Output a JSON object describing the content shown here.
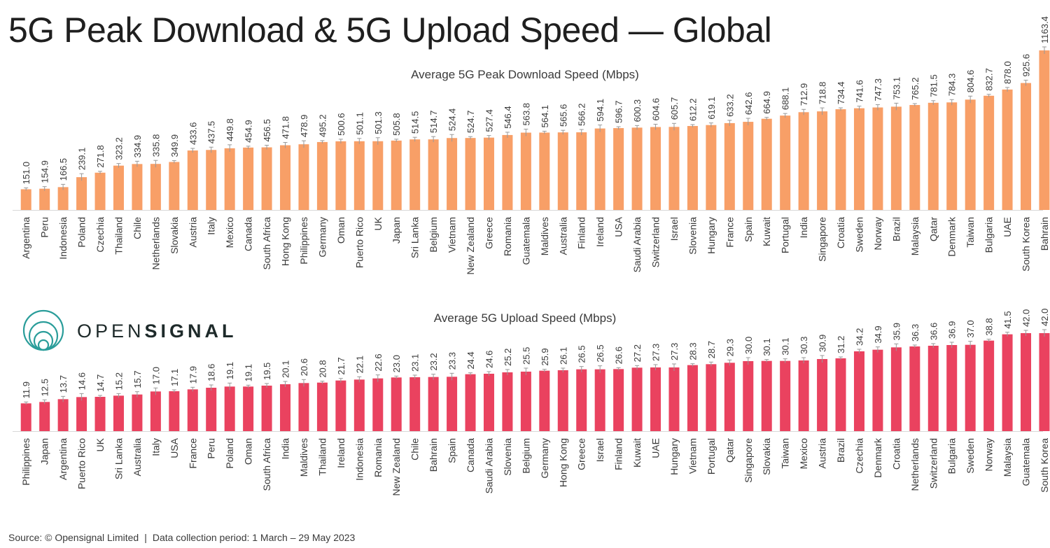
{
  "title": "5G Peak Download & 5G Upload Speed — Global",
  "logo": {
    "name_light": "OPEN",
    "name_bold": "SIGNAL"
  },
  "footer": {
    "source": "Source:  © Opensignal Limited",
    "separator": "|",
    "period": "Data collection period: 1 March – 29 May 2023"
  },
  "colors": {
    "download": "#f89f67",
    "upload": "#ea425f",
    "error_bar": "#999999",
    "text": "#3a3a3a"
  },
  "chart_data": [
    {
      "type": "bar",
      "title": "Average 5G Peak Download Speed (Mbps)",
      "xlabel": "",
      "ylabel": "",
      "ylim": [
        0,
        1163.4
      ],
      "grid": false,
      "categories": [
        "Argentina",
        "Peru",
        "Indonesia",
        "Poland",
        "Czechia",
        "Thailand",
        "Chile",
        "Netherlands",
        "Slovakia",
        "Austria",
        "Italy",
        "Mexico",
        "Canada",
        "South Africa",
        "Hong Kong",
        "Philippines",
        "Germany",
        "Oman",
        "Puerto Rico",
        "UK",
        "Japan",
        "Sri Lanka",
        "Belgium",
        "Vietnam",
        "New Zealand",
        "Greece",
        "Romania",
        "Guatemala",
        "Maldives",
        "Australia",
        "Finland",
        "Ireland",
        "USA",
        "Saudi Arabia",
        "Switzerland",
        "Israel",
        "Slovenia",
        "Hungary",
        "France",
        "Spain",
        "Kuwait",
        "Portugal",
        "India",
        "Singapore",
        "Croatia",
        "Sweden",
        "Norway",
        "Brazil",
        "Malaysia",
        "Qatar",
        "Denmark",
        "Taiwan",
        "Bulgaria",
        "UAE",
        "South Korea",
        "Bahrain"
      ],
      "values": [
        151.0,
        154.9,
        166.5,
        239.1,
        271.8,
        323.2,
        334.9,
        335.8,
        349.9,
        433.6,
        437.5,
        449.8,
        454.9,
        456.5,
        471.8,
        478.9,
        495.2,
        500.6,
        501.1,
        501.3,
        505.8,
        514.5,
        514.7,
        524.4,
        524.7,
        527.4,
        546.4,
        563.8,
        564.1,
        565.6,
        566.2,
        594.1,
        596.7,
        600.3,
        604.6,
        605.7,
        612.2,
        619.1,
        633.2,
        642.6,
        664.9,
        688.1,
        712.9,
        718.8,
        734.4,
        741.6,
        747.3,
        753.1,
        765.2,
        781.5,
        784.3,
        804.6,
        832.7,
        878.0,
        925.6,
        1163.4
      ],
      "value_labels": [
        "151.0",
        "154.9",
        "166.5",
        "239.1",
        "271.8",
        "323.2",
        "334.9",
        "335.8",
        "349.9",
        "433.6",
        "437.5",
        "449.8",
        "454.9",
        "456.5",
        "471.8",
        "478.9",
        "495.2",
        "500.6",
        "501.1",
        "501.3",
        "505.8",
        "514.5",
        "514.7",
        "524.4",
        "524.7",
        "527.4",
        "546.4",
        "563.8",
        "564.1",
        "565.6",
        "566.2",
        "594.1",
        "596.7",
        "600.3",
        "604.6",
        "605.7",
        "612.2",
        "619.1",
        "633.2",
        "642.6",
        "664.9",
        "688.1",
        "712.9",
        "718.8",
        "734.4",
        "741.6",
        "747.3",
        "753.1",
        "765.2",
        "781.5",
        "784.3",
        "804.6",
        "832.7",
        "878.0",
        "925.6",
        "1163.4"
      ]
    },
    {
      "type": "bar",
      "title": "Average 5G Upload Speed (Mbps)",
      "xlabel": "",
      "ylabel": "",
      "ylim": [
        0,
        42.0
      ],
      "grid": false,
      "categories": [
        "Philippines",
        "Japan",
        "Argentina",
        "Puerto Rico",
        "UK",
        "Sri Lanka",
        "Australia",
        "Italy",
        "USA",
        "France",
        "Peru",
        "Poland",
        "Oman",
        "South Africa",
        "India",
        "Maldives",
        "Thailand",
        "Ireland",
        "Indonesia",
        "Romania",
        "New Zealand",
        "Chile",
        "Bahrain",
        "Spain",
        "Canada",
        "Saudi Arabia",
        "Slovenia",
        "Belgium",
        "Germany",
        "Hong Kong",
        "Greece",
        "Israel",
        "Finland",
        "Kuwait",
        "UAE",
        "Hungary",
        "Vietnam",
        "Portugal",
        "Qatar",
        "Singapore",
        "Slovakia",
        "Taiwan",
        "Mexico",
        "Austria",
        "Brazil",
        "Czechia",
        "Denmark",
        "Croatia",
        "Netherlands",
        "Switzerland",
        "Bulgaria",
        "Sweden",
        "Norway",
        "Malaysia",
        "Guatemala",
        "South Korea"
      ],
      "values": [
        11.9,
        12.5,
        13.7,
        14.6,
        14.7,
        15.2,
        15.7,
        17.0,
        17.1,
        17.9,
        18.6,
        19.1,
        19.1,
        19.5,
        20.1,
        20.6,
        20.8,
        21.7,
        22.1,
        22.6,
        23.0,
        23.1,
        23.2,
        23.3,
        24.4,
        24.6,
        25.2,
        25.5,
        25.9,
        26.1,
        26.5,
        26.5,
        26.6,
        27.2,
        27.3,
        27.3,
        28.3,
        28.7,
        29.3,
        30.0,
        30.1,
        30.1,
        30.3,
        30.9,
        31.2,
        34.2,
        34.9,
        35.9,
        36.3,
        36.6,
        36.9,
        37.0,
        38.8,
        41.5,
        42.0,
        42.0
      ],
      "value_labels": [
        "11.9",
        "12.5",
        "13.7",
        "14.6",
        "14.7",
        "15.2",
        "15.7",
        "17.0",
        "17.1",
        "17.9",
        "18.6",
        "19.1",
        "19.1",
        "19.5",
        "20.1",
        "20.6",
        "20.8",
        "21.7",
        "22.1",
        "22.6",
        "23.0",
        "23.1",
        "23.2",
        "23.3",
        "24.4",
        "24.6",
        "25.2",
        "25.5",
        "25.9",
        "26.1",
        "26.5",
        "26.5",
        "26.6",
        "27.2",
        "27.3",
        "27.3",
        "28.3",
        "28.7",
        "29.3",
        "30.0",
        "30.1",
        "30.1",
        "30.3",
        "30.9",
        "31.2",
        "34.2",
        "34.9",
        "35.9",
        "36.3",
        "36.6",
        "36.9",
        "37.0",
        "38.8",
        "41.5",
        "42.0",
        "42.0"
      ]
    }
  ]
}
